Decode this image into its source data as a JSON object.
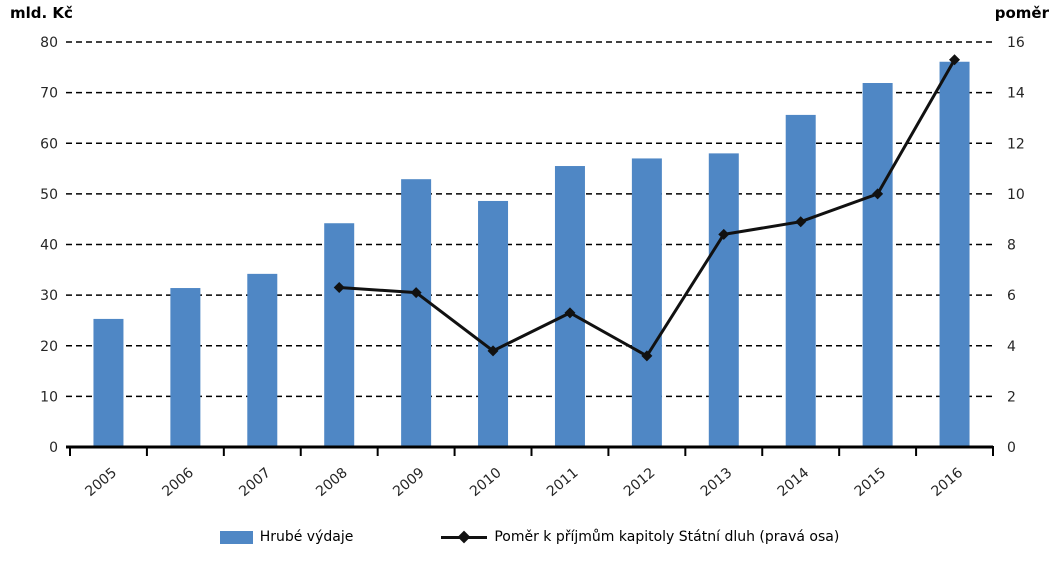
{
  "chart_data": {
    "type": "bar+line",
    "categories": [
      "2005",
      "2006",
      "2007",
      "2008",
      "2009",
      "2010",
      "2011",
      "2012",
      "2013",
      "2014",
      "2015",
      "2016"
    ],
    "series": [
      {
        "name": "Hrubé výdaje",
        "type": "bar",
        "axis": "left",
        "color": "#4F87C5",
        "values": [
          25.3,
          31.4,
          34.2,
          44.2,
          52.9,
          48.6,
          55.5,
          57.0,
          58.0,
          65.6,
          71.9,
          76.1
        ]
      },
      {
        "name": "Poměr k příjmům kapitoly Státní dluh (pravá osa)",
        "type": "line",
        "axis": "right",
        "color": "#111111",
        "marker": "diamond",
        "values": [
          null,
          null,
          null,
          6.3,
          6.1,
          3.8,
          5.3,
          3.6,
          8.4,
          8.9,
          10.0,
          15.3
        ]
      }
    ],
    "left_axis": {
      "title": "mld. Kč",
      "min": 0,
      "max": 80,
      "ticks": [
        0,
        10,
        20,
        30,
        40,
        50,
        60,
        70,
        80
      ]
    },
    "right_axis": {
      "title": "poměr",
      "min": 0,
      "max": 16,
      "ticks": [
        0,
        2,
        4,
        6,
        8,
        10,
        12,
        14,
        16
      ]
    },
    "grid": "horizontal-dashed",
    "legend_position": "bottom"
  }
}
